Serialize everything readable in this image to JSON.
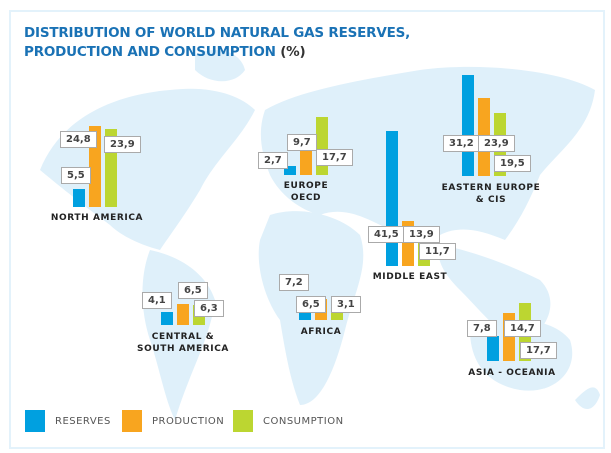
{
  "chart_data": {
    "type": "bar",
    "title_main": "DISTRIBUTION OF WORLD NATURAL GAS RESERVES, PRODUCTION AND CONSUMPTION",
    "title_line1": "DISTRIBUTION OF WORLD NATURAL GAS RESERVES,",
    "title_line2": "PRODUCTION AND CONSUMPTION",
    "title_unit": "(%)",
    "series": [
      {
        "name": "RESERVES",
        "color": "#00a0e0"
      },
      {
        "name": "PRODUCTION",
        "color": "#f8a51f"
      },
      {
        "name": "CONSUMPTION",
        "color": "#bcd631"
      }
    ],
    "categories": [
      {
        "name_lines": [
          "NORTH AMERICA"
        ],
        "values": [
          5.5,
          24.8,
          23.9
        ],
        "labels": [
          "5,5",
          "24,8",
          "23,9"
        ]
      },
      {
        "name_lines": [
          "EUROPE",
          "OECD"
        ],
        "values": [
          2.7,
          9.7,
          17.7
        ],
        "labels": [
          "2,7",
          "9,7",
          "17,7"
        ]
      },
      {
        "name_lines": [
          "EASTERN EUROPE",
          "& CIS"
        ],
        "values": [
          31.2,
          23.9,
          19.5
        ],
        "labels": [
          "31,2",
          "23,9",
          "19,5"
        ]
      },
      {
        "name_lines": [
          "MIDDLE EAST"
        ],
        "values": [
          41.5,
          13.9,
          11.7
        ],
        "labels": [
          "41,5",
          "13,9",
          "11,7"
        ]
      },
      {
        "name_lines": [
          "CENTRAL &",
          "SOUTH AMERICA"
        ],
        "values": [
          4.1,
          6.5,
          6.3
        ],
        "labels": [
          "4,1",
          "6,5",
          "6,3"
        ]
      },
      {
        "name_lines": [
          "AFRICA"
        ],
        "values": [
          7.2,
          6.5,
          3.1
        ],
        "labels": [
          "7,2",
          "6,5",
          "3,1"
        ]
      },
      {
        "name_lines": [
          "ASIA - OCEANIA"
        ],
        "values": [
          7.8,
          14.7,
          17.7
        ],
        "labels": [
          "7,8",
          "14,7",
          "17,7"
        ]
      }
    ],
    "background": "world map",
    "map_color": "#dff0fa",
    "legend_placement": "bottom-left"
  }
}
